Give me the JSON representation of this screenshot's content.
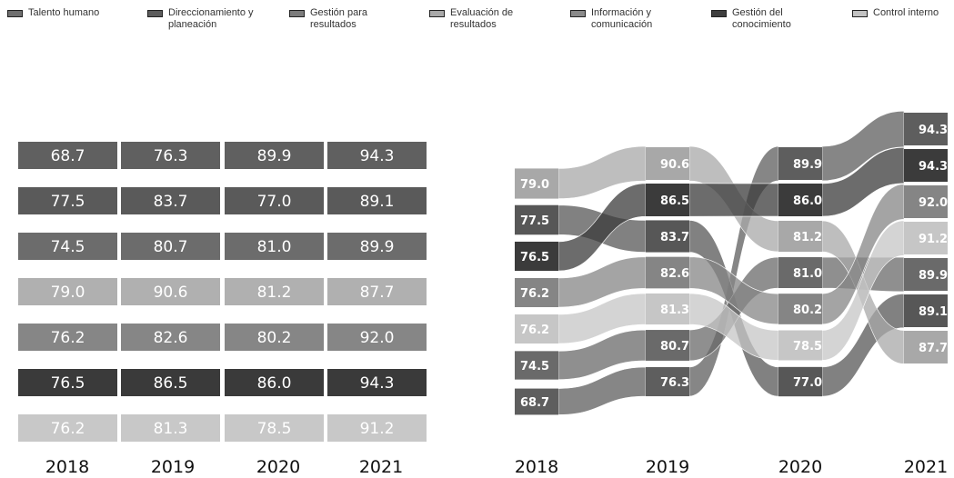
{
  "legend": [
    {
      "label": "Talento humano",
      "color": "#6f6f6f"
    },
    {
      "label": "Direccionamiento y\nplaneación",
      "color": "#5c5c5c"
    },
    {
      "label": "Gestión para\nresultados",
      "color": "#7c7c7c"
    },
    {
      "label": "Evaluación de\nresultados",
      "color": "#a9a9a9"
    },
    {
      "label": "Información y\ncomunicación",
      "color": "#8a8a8a"
    },
    {
      "label": "Gestión del\nconocimiento",
      "color": "#3e3e3e"
    },
    {
      "label": "Control interno",
      "color": "#c2c2c2"
    }
  ],
  "chart_data": [
    {
      "type": "table",
      "columns": [
        "2018",
        "2019",
        "2020",
        "2021"
      ],
      "rows": [
        {
          "category": "Talento humano",
          "color": "#606060",
          "values": [
            "68.7",
            "76.3",
            "89.9",
            "94.3"
          ]
        },
        {
          "category": "Direccionamiento y planeación",
          "color": "#5a5a5a",
          "values": [
            "77.5",
            "83.7",
            "77.0",
            "89.1"
          ]
        },
        {
          "category": "Gestión para resultados",
          "color": "#6c6c6c",
          "values": [
            "74.5",
            "80.7",
            "81.0",
            "89.9"
          ]
        },
        {
          "category": "Evaluación de resultados",
          "color": "#b0b0b0",
          "values": [
            "79.0",
            "90.6",
            "81.2",
            "87.7"
          ]
        },
        {
          "category": "Información y comunicación",
          "color": "#868686",
          "values": [
            "76.2",
            "82.6",
            "80.2",
            "92.0"
          ]
        },
        {
          "category": "Gestión del conocimiento",
          "color": "#3a3a3a",
          "values": [
            "76.5",
            "86.5",
            "86.0",
            "94.3"
          ]
        },
        {
          "category": "Control interno",
          "color": "#c8c8c8",
          "values": [
            "76.2",
            "81.3",
            "78.5",
            "91.2"
          ]
        }
      ]
    },
    {
      "type": "sankey",
      "x": [
        "2018",
        "2019",
        "2020",
        "2021"
      ],
      "series": [
        {
          "name": "Talento humano",
          "color": "#5e5e5e",
          "values": [
            68.7,
            76.3,
            89.9,
            94.3
          ]
        },
        {
          "name": "Direccionamiento y planeación",
          "color": "#575757",
          "values": [
            77.5,
            83.7,
            77.0,
            89.1
          ]
        },
        {
          "name": "Gestión para resultados",
          "color": "#6a6a6a",
          "values": [
            74.5,
            80.7,
            81.0,
            89.9
          ]
        },
        {
          "name": "Evaluación de resultados",
          "color": "#a8a8a8",
          "values": [
            79.0,
            90.6,
            81.2,
            87.7
          ]
        },
        {
          "name": "Información y comunicación",
          "color": "#858585",
          "values": [
            76.2,
            82.6,
            80.2,
            92.0
          ]
        },
        {
          "name": "Gestión del conocimiento",
          "color": "#3b3b3b",
          "values": [
            76.5,
            86.5,
            86.0,
            94.3
          ]
        },
        {
          "name": "Control interno",
          "color": "#c6c6c6",
          "values": [
            76.2,
            81.3,
            78.5,
            91.2
          ]
        }
      ],
      "node_labels": [
        [
          "79.0",
          "77.5",
          "76.5",
          "76.2",
          "76.2",
          "74.5",
          "68.7"
        ],
        [
          "90.6",
          "86.5",
          "83.7",
          "82.6",
          "81.3",
          "80.7",
          "76.3"
        ],
        [
          "89.9",
          "86.0",
          "81.2",
          "81.0",
          "80.2",
          "78.5",
          "77.0"
        ],
        [
          "94.3",
          "94.3",
          "92.0",
          "91.2",
          "89.9",
          "89.1",
          "87.7"
        ]
      ]
    }
  ]
}
